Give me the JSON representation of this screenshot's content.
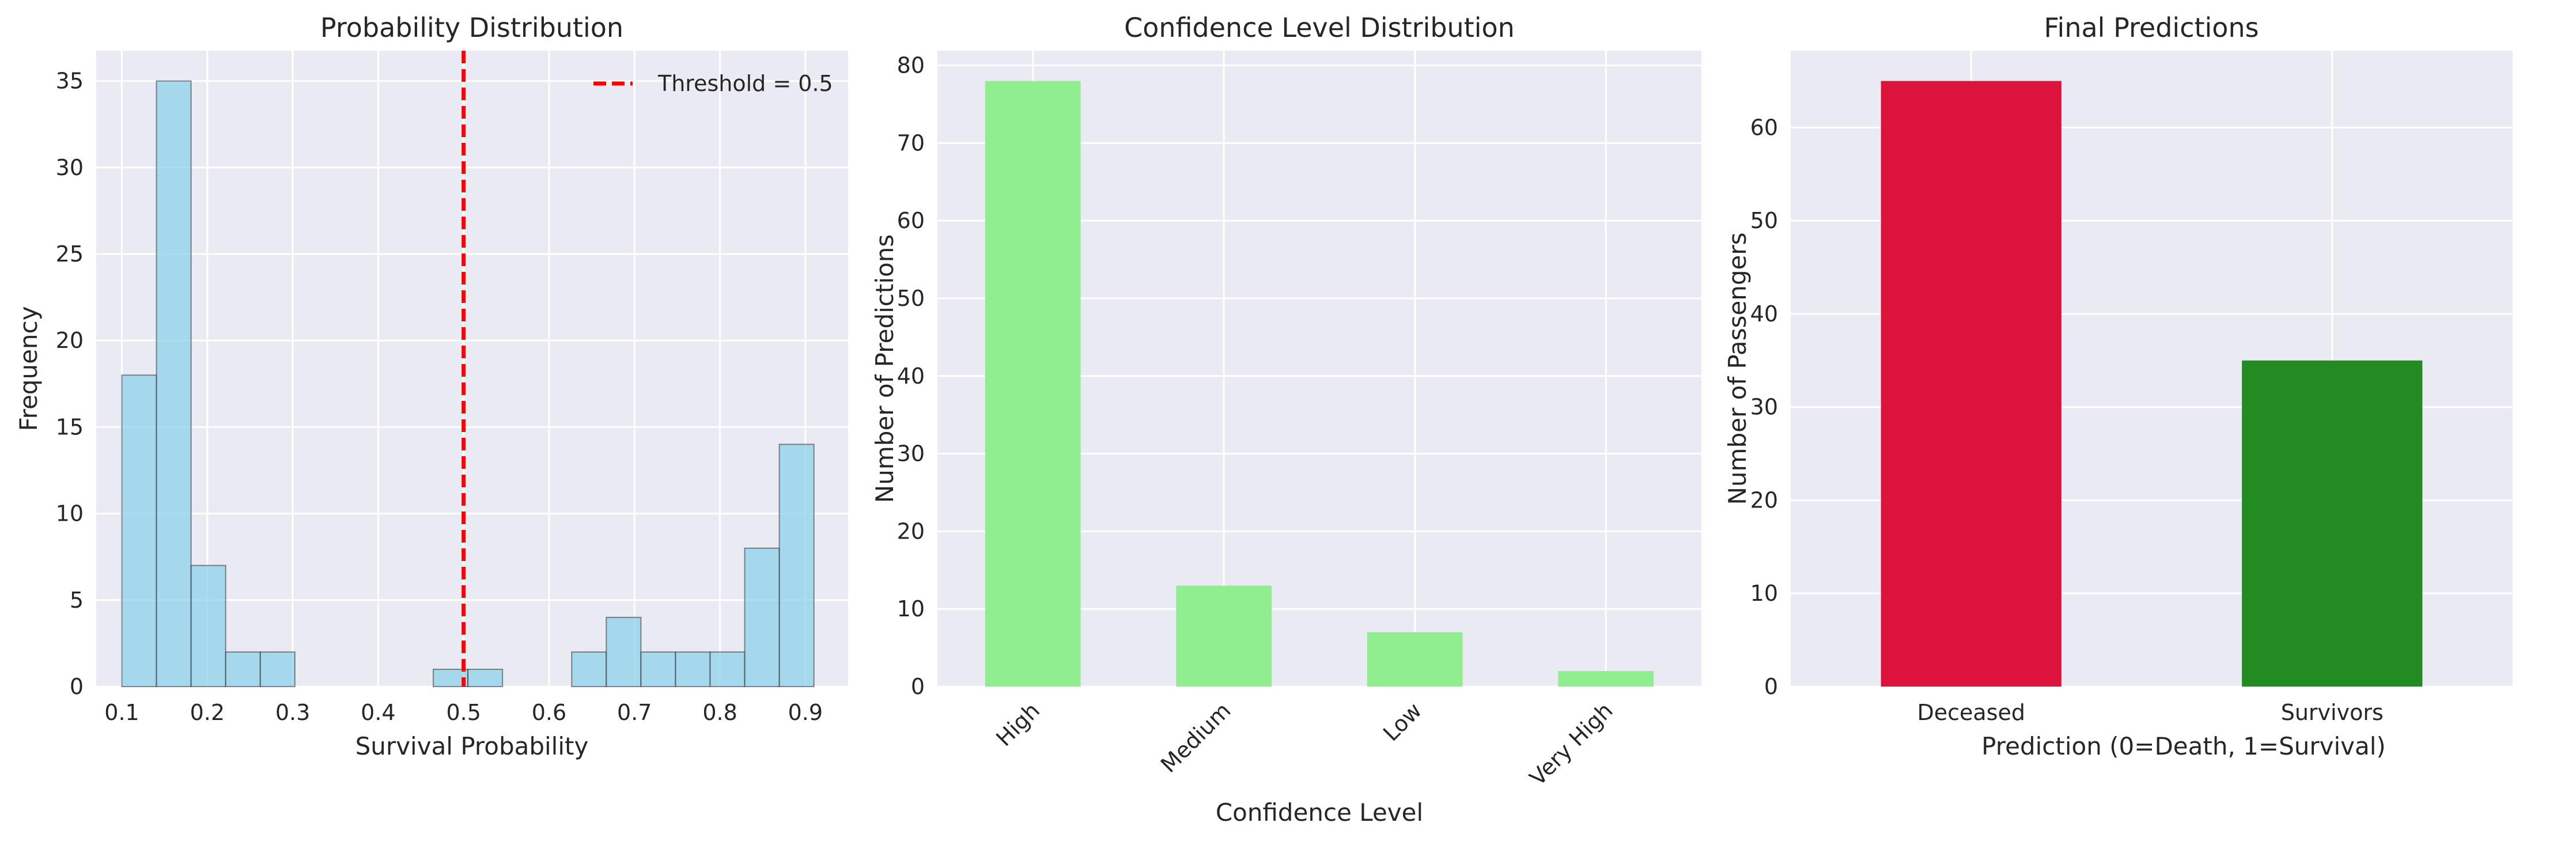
{
  "chart_data": [
    {
      "type": "bar",
      "subtype": "histogram",
      "title": "Probability Distribution",
      "xlabel": "Survival Probability",
      "ylabel": "Frequency",
      "xlim": [
        0.07,
        0.95
      ],
      "ylim": [
        0,
        36.75
      ],
      "xticks": [
        "0.1",
        "0.2",
        "0.3",
        "0.4",
        "0.5",
        "0.6",
        "0.7",
        "0.8",
        "0.9"
      ],
      "yticks": [
        "0",
        "5",
        "10",
        "15",
        "20",
        "25",
        "30",
        "35"
      ],
      "bin_edges": [
        0.1,
        0.1405,
        0.181,
        0.2215,
        0.262,
        0.3025,
        0.343,
        0.3835,
        0.424,
        0.4645,
        0.505,
        0.5455,
        0.586,
        0.6265,
        0.667,
        0.7075,
        0.748,
        0.7885,
        0.829,
        0.8695,
        0.91
      ],
      "counts": [
        18,
        35,
        7,
        2,
        2,
        0,
        0,
        0,
        0,
        1,
        1,
        0,
        0,
        2,
        4,
        2,
        2,
        2,
        8,
        14
      ],
      "bar_color": "#87ceeb",
      "grid": true,
      "threshold": {
        "x": 0.5,
        "label": "Threshold = 0.5",
        "color": "#ff0000"
      },
      "legend_position": "top-right"
    },
    {
      "type": "bar",
      "title": "Confidence Level Distribution",
      "xlabel": "Confidence Level",
      "ylabel": "Number of Predictions",
      "categories": [
        "High",
        "Medium",
        "Low",
        "Very High"
      ],
      "values": [
        78,
        13,
        7,
        2
      ],
      "ylim": [
        0,
        81.9
      ],
      "yticks": [
        "0",
        "10",
        "20",
        "30",
        "40",
        "50",
        "60",
        "70",
        "80"
      ],
      "bar_color": "#90ee90",
      "tick_rotation": 45,
      "grid": true
    },
    {
      "type": "bar",
      "title": "Final Predictions",
      "xlabel": "Prediction (0=Death, 1=Survival)",
      "ylabel": "Number of Passengers",
      "categories": [
        "Deceased",
        "Survivors"
      ],
      "values": [
        65,
        35
      ],
      "colors": [
        "#dc143c",
        "#228b22"
      ],
      "ylim": [
        0,
        68.25
      ],
      "yticks": [
        "0",
        "10",
        "20",
        "30",
        "40",
        "50",
        "60"
      ],
      "grid": true
    }
  ]
}
